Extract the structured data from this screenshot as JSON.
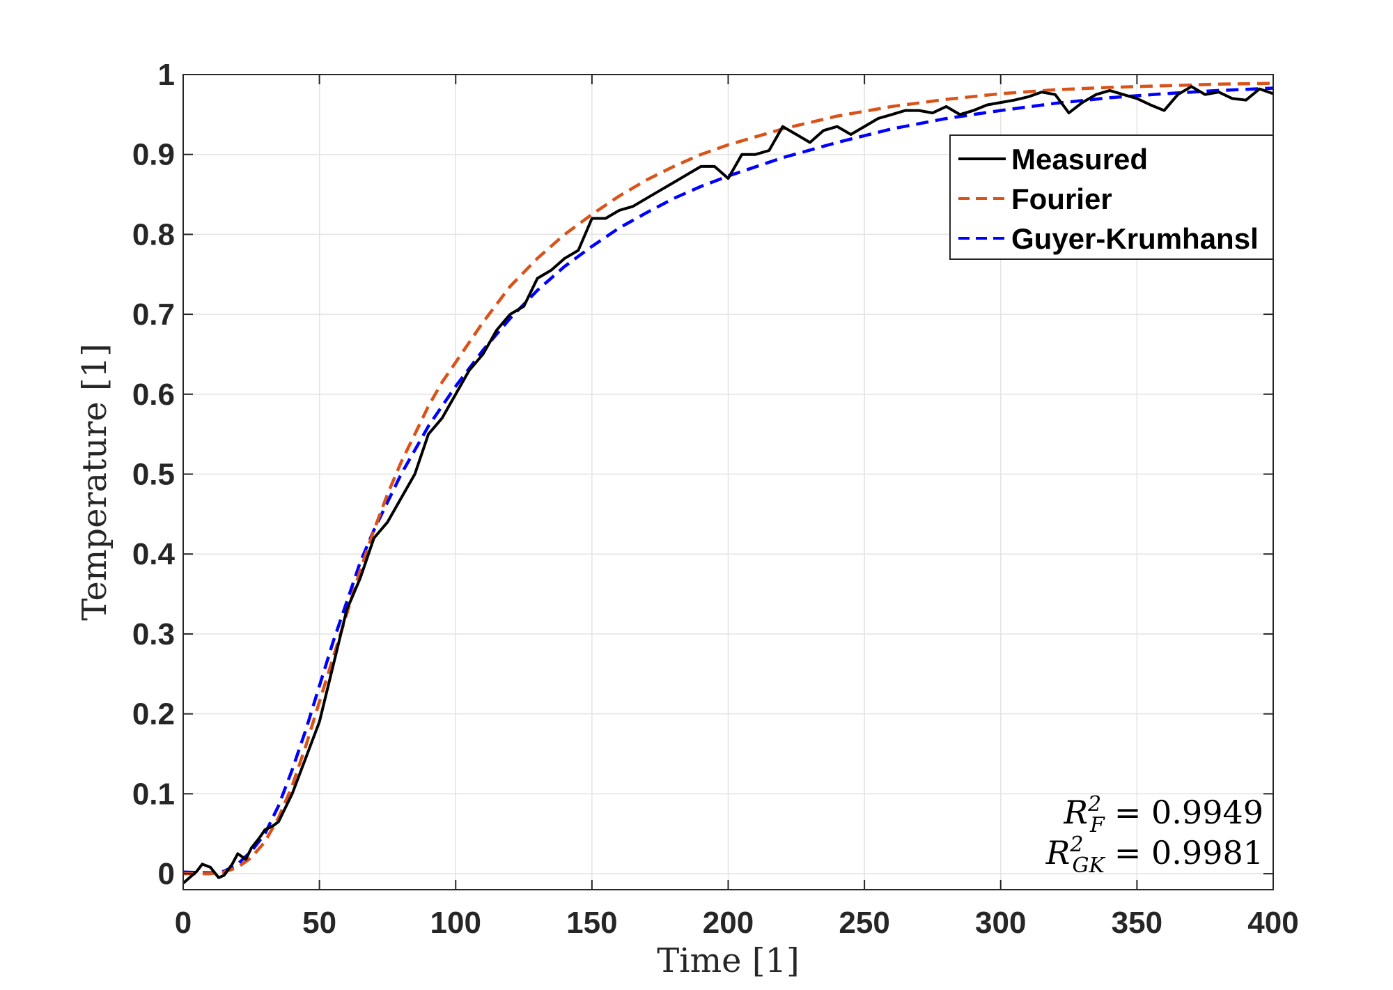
{
  "chart_data": {
    "type": "line",
    "xlabel": "Time [1]",
    "ylabel": "Temperature [1]",
    "xlim": [
      0,
      400
    ],
    "ylim": [
      -0.02,
      1
    ],
    "xticks": [
      0,
      50,
      100,
      150,
      200,
      250,
      300,
      350,
      400
    ],
    "yticks": [
      0,
      0.1,
      0.2,
      0.3,
      0.4,
      0.5,
      0.6,
      0.7,
      0.8,
      0.9,
      1
    ],
    "xtick_labels": [
      "0",
      "50",
      "100",
      "150",
      "200",
      "250",
      "300",
      "350",
      "400"
    ],
    "ytick_labels": [
      "0",
      "0.1",
      "0.2",
      "0.3",
      "0.4",
      "0.5",
      "0.6",
      "0.7",
      "0.8",
      "0.9",
      "1"
    ],
    "grid": true,
    "legend_position": "top-right",
    "series": [
      {
        "name": "Measured",
        "color": "#000000",
        "style": "solid",
        "x": [
          0,
          5,
          7,
          10,
          13,
          15,
          18,
          20,
          23,
          25,
          28,
          30,
          33,
          35,
          40,
          45,
          50,
          55,
          60,
          65,
          70,
          75,
          80,
          85,
          90,
          95,
          100,
          105,
          110,
          115,
          120,
          125,
          130,
          135,
          140,
          145,
          150,
          155,
          160,
          165,
          170,
          175,
          180,
          185,
          190,
          195,
          200,
          205,
          210,
          215,
          220,
          225,
          230,
          235,
          240,
          245,
          250,
          255,
          260,
          265,
          270,
          275,
          280,
          285,
          290,
          295,
          300,
          305,
          310,
          315,
          320,
          325,
          330,
          335,
          340,
          345,
          350,
          355,
          360,
          365,
          370,
          375,
          380,
          385,
          390,
          395,
          400
        ],
        "y": [
          -0.012,
          0.003,
          0.012,
          0.008,
          -0.005,
          -0.002,
          0.012,
          0.025,
          0.018,
          0.032,
          0.045,
          0.055,
          0.06,
          0.065,
          0.1,
          0.145,
          0.19,
          0.26,
          0.33,
          0.37,
          0.42,
          0.44,
          0.47,
          0.5,
          0.55,
          0.57,
          0.6,
          0.63,
          0.65,
          0.68,
          0.7,
          0.71,
          0.745,
          0.755,
          0.77,
          0.78,
          0.82,
          0.82,
          0.83,
          0.835,
          0.845,
          0.855,
          0.865,
          0.875,
          0.885,
          0.885,
          0.87,
          0.9,
          0.9,
          0.905,
          0.935,
          0.925,
          0.915,
          0.93,
          0.935,
          0.925,
          0.935,
          0.945,
          0.95,
          0.955,
          0.955,
          0.952,
          0.96,
          0.95,
          0.955,
          0.962,
          0.965,
          0.968,
          0.972,
          0.978,
          0.975,
          0.952,
          0.965,
          0.975,
          0.98,
          0.975,
          0.97,
          0.962,
          0.955,
          0.975,
          0.985,
          0.975,
          0.978,
          0.97,
          0.968,
          0.982,
          0.976
        ]
      },
      {
        "name": "Fourier",
        "color": "#D95319",
        "style": "dashed",
        "x": [
          0,
          10,
          15,
          20,
          25,
          30,
          35,
          40,
          45,
          50,
          55,
          60,
          65,
          70,
          75,
          80,
          85,
          90,
          95,
          100,
          110,
          120,
          130,
          140,
          150,
          160,
          170,
          180,
          190,
          200,
          220,
          240,
          260,
          280,
          300,
          320,
          340,
          360,
          380,
          400
        ],
        "y": [
          0,
          0,
          0.002,
          0.008,
          0.02,
          0.04,
          0.07,
          0.11,
          0.16,
          0.215,
          0.27,
          0.325,
          0.38,
          0.43,
          0.475,
          0.515,
          0.55,
          0.585,
          0.615,
          0.64,
          0.69,
          0.735,
          0.77,
          0.8,
          0.825,
          0.848,
          0.868,
          0.885,
          0.9,
          0.912,
          0.932,
          0.948,
          0.96,
          0.969,
          0.976,
          0.981,
          0.984,
          0.986,
          0.988,
          0.989
        ]
      },
      {
        "name": "Guyer-Krumhansl",
        "color": "#0000FF",
        "style": "dashed",
        "x": [
          0,
          10,
          15,
          20,
          25,
          30,
          35,
          40,
          45,
          50,
          55,
          60,
          65,
          70,
          75,
          80,
          85,
          90,
          95,
          100,
          110,
          120,
          130,
          140,
          150,
          160,
          170,
          180,
          190,
          200,
          220,
          240,
          260,
          280,
          300,
          320,
          340,
          360,
          380,
          400
        ],
        "y": [
          0.002,
          0.001,
          0.003,
          0.012,
          0.028,
          0.05,
          0.085,
          0.13,
          0.18,
          0.235,
          0.29,
          0.34,
          0.39,
          0.43,
          0.465,
          0.5,
          0.53,
          0.56,
          0.585,
          0.61,
          0.655,
          0.695,
          0.73,
          0.76,
          0.785,
          0.808,
          0.827,
          0.845,
          0.86,
          0.873,
          0.896,
          0.915,
          0.932,
          0.945,
          0.955,
          0.964,
          0.971,
          0.976,
          0.98,
          0.983
        ]
      }
    ],
    "annotations": {
      "r2_f": {
        "base": "R",
        "sup": "2",
        "sub": "F",
        "value": "= 0.9949"
      },
      "r2_gk": {
        "base": "R",
        "sup": "2",
        "sub": "GK",
        "value": "= 0.9981"
      }
    }
  }
}
